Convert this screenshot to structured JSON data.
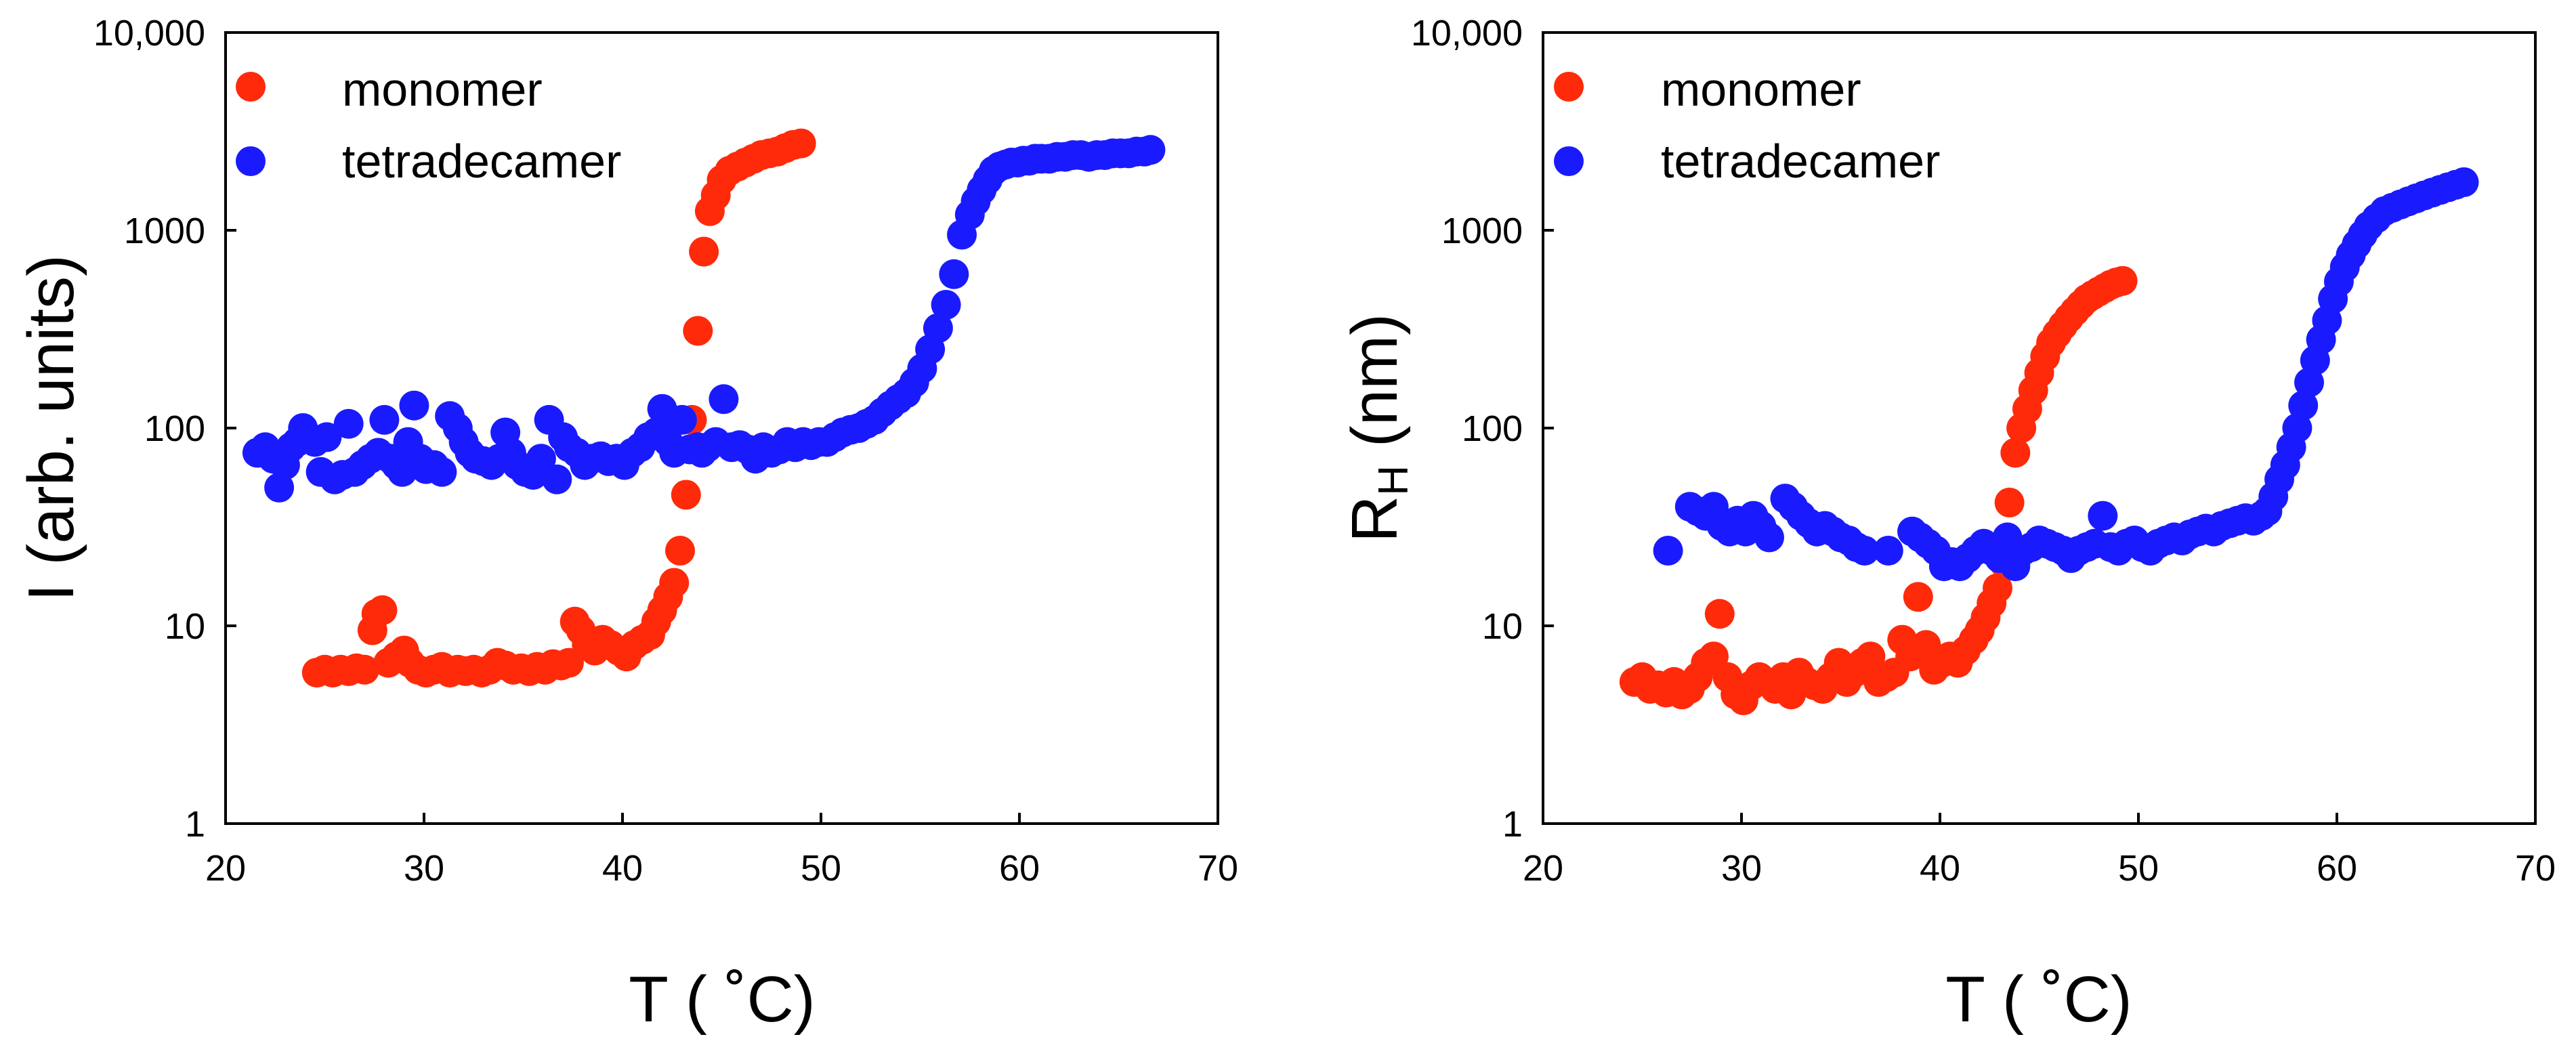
{
  "chart_data": [
    {
      "type": "scatter",
      "xlabel": "T ( ˚C)",
      "ylabel": "I (arb. units)",
      "xlim": [
        20,
        70
      ],
      "ylim": [
        1,
        10000
      ],
      "yscale": "log",
      "xticks": [
        "20",
        "30",
        "40",
        "50",
        "60",
        "70"
      ],
      "yticks": [
        "1",
        "10",
        "100",
        "1000",
        "10,000"
      ],
      "legend_position": "top-left",
      "colors": {
        "monomer": "#ff2a0a",
        "tetradecamer": "#1a1aff"
      },
      "series": [
        {
          "name": "monomer",
          "x": [
            24.6,
            25.0,
            25.4,
            25.8,
            26.2,
            26.6,
            27.0,
            27.4,
            27.6,
            27.9,
            28.2,
            28.6,
            29.0,
            29.3,
            29.7,
            30.1,
            30.5,
            30.9,
            31.3,
            31.7,
            32.1,
            32.5,
            32.9,
            33.3,
            33.7,
            34.1,
            34.5,
            34.9,
            35.3,
            35.7,
            36.1,
            36.5,
            36.9,
            37.3,
            37.6,
            37.9,
            38.2,
            38.6,
            39.0,
            39.4,
            39.8,
            40.2,
            40.6,
            41.0,
            41.4,
            41.7,
            42.0,
            42.3,
            42.6,
            42.9,
            43.2,
            43.5,
            43.8,
            44.1,
            44.4,
            44.7,
            45.0,
            45.4,
            45.8,
            46.2,
            46.6,
            47.0,
            47.4,
            47.8,
            48.2,
            48.6,
            49.0
          ],
          "y": [
            5.8,
            6.0,
            5.8,
            6.0,
            5.9,
            6.1,
            6.0,
            9.5,
            11.5,
            12.0,
            6.5,
            7.0,
            7.5,
            6.5,
            6.0,
            5.8,
            6.0,
            6.2,
            5.8,
            6.0,
            5.9,
            6.0,
            5.8,
            6.0,
            6.5,
            6.3,
            6.0,
            6.1,
            5.9,
            6.2,
            6.0,
            6.4,
            6.3,
            6.5,
            10.5,
            9.5,
            8.0,
            7.5,
            8.5,
            8.0,
            7.5,
            7.0,
            8.0,
            8.5,
            9.0,
            10.5,
            12.0,
            14.0,
            16.5,
            24.0,
            46.0,
            110.0,
            310.0,
            780.0,
            1250.0,
            1500.0,
            1800.0,
            2000.0,
            2100.0,
            2200.0,
            2300.0,
            2400.0,
            2450.0,
            2500.0,
            2600.0,
            2700.0,
            2750.0
          ]
        },
        {
          "name": "tetradecamer",
          "x": [
            21.6,
            22.0,
            22.4,
            22.7,
            23.0,
            23.3,
            23.6,
            23.9,
            24.2,
            24.5,
            24.8,
            25.1,
            25.5,
            25.9,
            26.2,
            26.5,
            26.9,
            27.3,
            27.7,
            28.0,
            28.3,
            28.6,
            28.9,
            29.2,
            29.5,
            29.8,
            30.1,
            30.5,
            30.9,
            31.3,
            31.7,
            32.0,
            32.3,
            32.6,
            33.0,
            33.4,
            33.8,
            34.1,
            34.4,
            34.7,
            35.1,
            35.5,
            35.9,
            36.3,
            36.7,
            37.0,
            37.3,
            37.7,
            38.1,
            38.5,
            38.9,
            39.3,
            39.7,
            40.1,
            40.5,
            40.9,
            41.3,
            41.7,
            42.0,
            42.3,
            42.6,
            43.0,
            43.4,
            43.8,
            44.0,
            44.3,
            44.7,
            45.1,
            45.5,
            45.9,
            46.3,
            46.7,
            47.1,
            47.5,
            47.9,
            48.3,
            48.7,
            49.1,
            49.5,
            49.9,
            50.3,
            50.7,
            51.1,
            51.5,
            51.9,
            52.3,
            52.7,
            53.1,
            53.5,
            53.9,
            54.3,
            54.7,
            55.1,
            55.5,
            55.9,
            56.3,
            56.7,
            57.1,
            57.5,
            57.8,
            58.1,
            58.4,
            58.7,
            59.0,
            59.3,
            59.6,
            59.9,
            60.2,
            60.5,
            60.8,
            61.1,
            61.5,
            61.9,
            62.3,
            62.7,
            63.1,
            63.5,
            63.9,
            64.3,
            64.7,
            65.1,
            65.5,
            65.9,
            66.3,
            66.6
          ],
          "y": [
            75,
            80,
            70,
            50,
            65,
            80,
            85,
            100,
            90,
            85,
            60,
            90,
            55,
            58,
            105,
            60,
            65,
            70,
            75,
            110,
            70,
            65,
            60,
            85,
            130,
            70,
            62,
            65,
            60,
            115,
            100,
            85,
            75,
            70,
            68,
            65,
            70,
            95,
            75,
            65,
            60,
            58,
            70,
            110,
            55,
            90,
            80,
            75,
            65,
            70,
            72,
            68,
            70,
            65,
            75,
            80,
            90,
            95,
            125,
            85,
            75,
            110,
            78,
            80,
            75,
            80,
            85,
            140,
            80,
            82,
            78,
            70,
            80,
            75,
            78,
            85,
            80,
            85,
            82,
            85,
            85,
            90,
            95,
            98,
            100,
            105,
            110,
            120,
            130,
            140,
            150,
            170,
            200,
            250,
            320,
            420,
            600,
            950,
            1200,
            1400,
            1600,
            1800,
            2000,
            2100,
            2150,
            2200,
            2200,
            2250,
            2250,
            2300,
            2300,
            2300,
            2350,
            2350,
            2400,
            2400,
            2350,
            2400,
            2400,
            2450,
            2450,
            2450,
            2500,
            2500,
            2550
          ]
        }
      ]
    },
    {
      "type": "scatter",
      "xlabel": "T ( ˚C)",
      "ylabel": "R",
      "ylabel_sub": "H",
      "ylabel_suffix": " (nm)",
      "xlim": [
        20,
        70
      ],
      "ylim": [
        1,
        10000
      ],
      "yscale": "log",
      "xticks": [
        "20",
        "30",
        "40",
        "50",
        "60",
        "70"
      ],
      "yticks": [
        "1",
        "10",
        "100",
        "1000",
        "10,000"
      ],
      "legend_position": "top-left",
      "colors": {
        "monomer": "#ff2a0a",
        "tetradecamer": "#1a1aff"
      },
      "series": [
        {
          "name": "monomer",
          "x": [
            24.6,
            25.0,
            25.4,
            25.8,
            26.2,
            26.6,
            27.0,
            27.4,
            27.8,
            28.2,
            28.6,
            28.9,
            29.3,
            29.7,
            30.1,
            30.5,
            30.9,
            31.3,
            31.7,
            32.1,
            32.5,
            32.9,
            33.3,
            33.7,
            34.1,
            34.5,
            34.9,
            35.3,
            35.7,
            36.1,
            36.5,
            36.9,
            37.3,
            37.7,
            38.1,
            38.5,
            38.9,
            39.3,
            39.7,
            40.1,
            40.5,
            40.9,
            41.3,
            41.7,
            42.0,
            42.3,
            42.6,
            42.9,
            43.2,
            43.5,
            43.8,
            44.1,
            44.4,
            44.7,
            45.0,
            45.3,
            45.6,
            45.9,
            46.2,
            46.5,
            46.8,
            47.1,
            47.4,
            47.7,
            48.0,
            48.3,
            48.6,
            48.9,
            49.2
          ],
          "y": [
            5.2,
            5.5,
            4.8,
            5.0,
            4.6,
            5.2,
            4.5,
            4.8,
            5.5,
            6.5,
            7.0,
            11.5,
            5.5,
            4.5,
            4.2,
            5.0,
            5.5,
            5.2,
            4.8,
            5.5,
            4.5,
            5.8,
            5.2,
            5.0,
            4.8,
            5.5,
            6.5,
            5.2,
            5.8,
            6.5,
            7.0,
            5.2,
            5.5,
            5.8,
            8.5,
            7.0,
            14.0,
            8.0,
            6.0,
            6.5,
            7.0,
            6.5,
            7.5,
            8.5,
            9.5,
            11.0,
            13.0,
            15.5,
            21.0,
            42.0,
            75.0,
            100.0,
            125.0,
            155.0,
            190.0,
            230.0,
            270.0,
            300.0,
            330.0,
            360.0,
            390.0,
            420.0,
            450.0,
            470.0,
            490.0,
            510.0,
            530.0,
            545.0,
            555.0
          ]
        },
        {
          "name": "tetradecamer",
          "x": [
            26.3,
            27.4,
            27.8,
            28.2,
            28.6,
            29.0,
            29.4,
            29.8,
            30.2,
            30.6,
            31.0,
            31.4,
            32.2,
            32.6,
            33.0,
            33.4,
            33.8,
            34.2,
            34.6,
            35.0,
            35.4,
            35.8,
            36.2,
            37.4,
            38.6,
            39.0,
            39.4,
            39.8,
            40.2,
            40.6,
            41.0,
            41.4,
            41.8,
            42.2,
            42.6,
            43.0,
            43.4,
            43.8,
            44.2,
            44.6,
            45.0,
            45.4,
            45.8,
            46.2,
            46.6,
            47.0,
            47.4,
            47.8,
            48.2,
            48.6,
            49.0,
            49.4,
            49.8,
            50.2,
            50.6,
            51.0,
            51.4,
            51.8,
            52.2,
            52.6,
            53.0,
            53.4,
            53.8,
            54.2,
            54.6,
            55.0,
            55.4,
            55.8,
            56.2,
            56.5,
            56.8,
            57.1,
            57.4,
            57.7,
            58.0,
            58.3,
            58.6,
            58.9,
            59.2,
            59.5,
            59.8,
            60.1,
            60.4,
            60.7,
            61.0,
            61.3,
            61.6,
            62.0,
            62.4,
            62.8,
            63.2,
            63.6,
            64.0,
            64.4,
            64.8,
            65.2,
            65.6,
            66.0,
            66.4
          ],
          "y": [
            24,
            40,
            38,
            36,
            40,
            32,
            30,
            34,
            30,
            36,
            32,
            28,
            44,
            40,
            36,
            33,
            30,
            32,
            30,
            28,
            27,
            25,
            24,
            24,
            30,
            28,
            26,
            24,
            20,
            21,
            20,
            22,
            24,
            26,
            24,
            22,
            28,
            20,
            24,
            25,
            27,
            26,
            25,
            24,
            22,
            24,
            25,
            26,
            36,
            25,
            24,
            26,
            27,
            25,
            24,
            26,
            27,
            28,
            27,
            29,
            30,
            31,
            30,
            32,
            33,
            34,
            35,
            34,
            36,
            38,
            45,
            55,
            65,
            80,
            100,
            130,
            170,
            220,
            280,
            350,
            450,
            550,
            650,
            750,
            850,
            950,
            1050,
            1150,
            1250,
            1300,
            1350,
            1400,
            1450,
            1500,
            1550,
            1600,
            1650,
            1700,
            1750
          ]
        }
      ]
    }
  ]
}
